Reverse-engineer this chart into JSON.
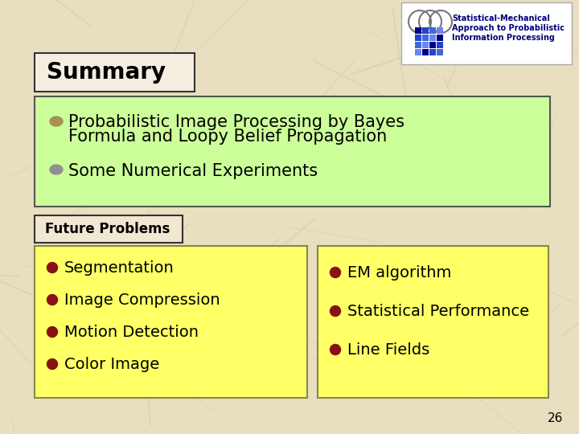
{
  "bg_color": "#e8dfc0",
  "title": "Summary",
  "title_box_facecolor": "#f5ede0",
  "title_box_edgecolor": "#333333",
  "title_fontsize": 20,
  "green_box_color": "#ccff99",
  "green_box_edgecolor": "#555555",
  "green_bullet_color1": "#a89050",
  "green_bullet_color2": "#909090",
  "green_item1_line1": "Probabilistic Image Processing by Bayes",
  "green_item1_line2": "Formula and Loopy Belief Propagation",
  "green_item2": "Some Numerical Experiments",
  "green_fontsize": 15,
  "future_label": "Future Problems",
  "future_box_facecolor": "#f0e8d0",
  "future_box_edgecolor": "#333333",
  "future_fontsize": 12,
  "yellow_box_color": "#ffff66",
  "yellow_box_edgecolor": "#888844",
  "yellow_bullet_color": "#881111",
  "left_items": [
    "Segmentation",
    "Image Compression",
    "Motion Detection",
    "Color Image"
  ],
  "right_items": [
    "EM algorithm",
    "Statistical Performance",
    "Line Fields"
  ],
  "yellow_fontsize": 14,
  "text_color": "#000000",
  "page_number": "26",
  "logo_text1": "Statistical-Mechanical",
  "logo_text2": "Approach to Probabilistic",
  "logo_text3": "Information Processing",
  "logo_box_facecolor": "#ffffff",
  "logo_box_edgecolor": "#aaaaaa"
}
